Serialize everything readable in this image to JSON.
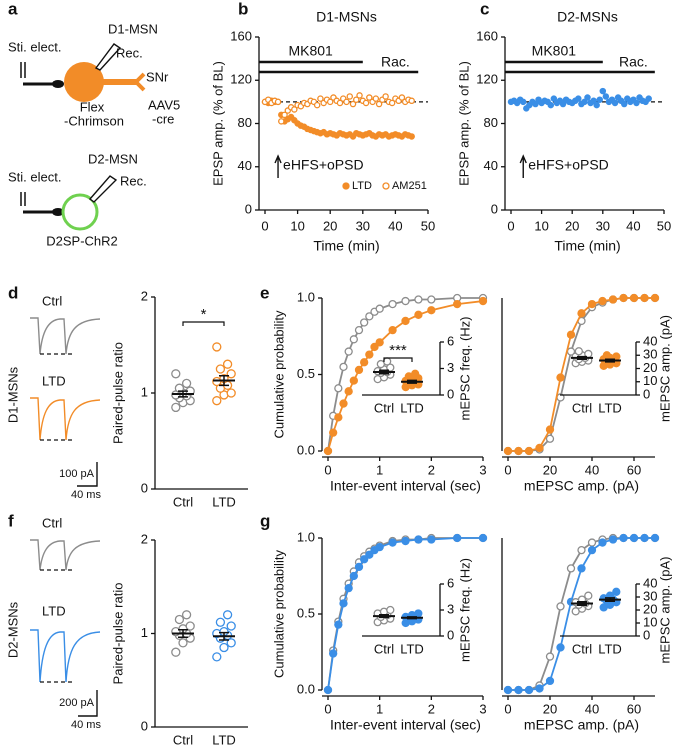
{
  "panel_labels": [
    "a",
    "b",
    "c",
    "d",
    "e",
    "f",
    "g"
  ],
  "diagram": {
    "d1": {
      "stim": "Sti. elect.",
      "cell": "D1-MSN",
      "rec": "Rec.",
      "target": "SNr",
      "opsin": "Flex",
      "opsin2": "-Chrimson",
      "virus": "AAV5",
      "virus2": "-cre"
    },
    "d2": {
      "stim": "Sti. elect.",
      "cell": "D2-MSN",
      "rec": "Rec.",
      "opsin": "D2SP-ChR2"
    }
  },
  "traces": {
    "d": {
      "row": "D1-MSNs",
      "ctrl": "Ctrl",
      "ltd": "LTD",
      "scale_y": "100 pA",
      "scale_x": "40 ms"
    },
    "f": {
      "row": "D2-MSNs",
      "ctrl": "Ctrl",
      "ltd": "LTD",
      "scale_y": "200 pA",
      "scale_x": "40 ms"
    }
  },
  "chart_data": [
    {
      "type": "line",
      "title": "D1-MSNs",
      "x_label": "Time (min)",
      "y_label": "EPSP amp. (% of BL)",
      "x": [
        0,
        1,
        2,
        3,
        4,
        5,
        6,
        7,
        8,
        9,
        10,
        11,
        12,
        13,
        14,
        15,
        16,
        17,
        18,
        19,
        20,
        21,
        22,
        23,
        24,
        25,
        26,
        27,
        28,
        29,
        30,
        31,
        32,
        33,
        34,
        35,
        36,
        37,
        38,
        39,
        40,
        41,
        42,
        43,
        44,
        45
      ],
      "series": [
        {
          "name": "LTD",
          "color": "#f28c28",
          "marker": "filled",
          "values": [
            100,
            99,
            101,
            100,
            100,
            88,
            82,
            84,
            86,
            83,
            80,
            78,
            77,
            75,
            74,
            73,
            72,
            71,
            72,
            70,
            71,
            70,
            69,
            71,
            70,
            69,
            70,
            68,
            71,
            70,
            69,
            70,
            71,
            69,
            68,
            70,
            69,
            70,
            68,
            69,
            70,
            69,
            68,
            70,
            69,
            68
          ]
        },
        {
          "name": "AM251",
          "color": "#f28c28",
          "marker": "open",
          "values": [
            100,
            102,
            99,
            101,
            100,
            82,
            88,
            92,
            95,
            93,
            97,
            96,
            99,
            98,
            101,
            100,
            97,
            103,
            99,
            102,
            100,
            104,
            101,
            99,
            103,
            100,
            105,
            98,
            102,
            106,
            101,
            99,
            104,
            100,
            103,
            98,
            102,
            105,
            100,
            99,
            103,
            101,
            104,
            100,
            102,
            101
          ]
        }
      ],
      "xlim": [
        0,
        50
      ],
      "ylim": [
        0,
        160
      ],
      "xticks": [
        0,
        10,
        20,
        30,
        40,
        50
      ],
      "yticks": [
        0,
        40,
        80,
        120,
        160
      ],
      "baseline": 100,
      "annotations": [
        "MK801",
        "Rac.",
        "eHFS+oPSD"
      ],
      "legend": "bottom-right"
    },
    {
      "type": "line",
      "title": "D2-MSNs",
      "x_label": "Time (min)",
      "y_label": "EPSP amp. (% of BL)",
      "x": [
        0,
        1,
        2,
        3,
        4,
        5,
        6,
        7,
        8,
        9,
        10,
        11,
        12,
        13,
        14,
        15,
        16,
        17,
        18,
        19,
        20,
        21,
        22,
        23,
        24,
        25,
        26,
        27,
        28,
        29,
        30,
        31,
        32,
        33,
        34,
        35,
        36,
        37,
        38,
        39,
        40,
        41,
        42,
        43,
        44,
        45
      ],
      "series": [
        {
          "color": "#3a8ee6",
          "marker": "filled",
          "values": [
            100,
            101,
            99,
            102,
            100,
            94,
            97,
            100,
            98,
            102,
            99,
            101,
            100,
            97,
            103,
            99,
            101,
            98,
            102,
            100,
            99,
            101,
            103,
            98,
            100,
            104,
            99,
            101,
            97,
            102,
            110,
            105,
            100,
            102,
            99,
            104,
            101,
            98,
            103,
            100,
            102,
            99,
            104,
            101,
            100,
            103
          ]
        }
      ],
      "xlim": [
        0,
        50
      ],
      "ylim": [
        0,
        160
      ],
      "xticks": [
        0,
        10,
        20,
        30,
        40,
        50
      ],
      "yticks": [
        0,
        40,
        80,
        120,
        160
      ],
      "baseline": 100,
      "annotations": [
        "MK801",
        "Rac.",
        "eHFS+oPSD"
      ]
    },
    {
      "type": "strip",
      "y_label": "Paired-pulse ratio",
      "categories": [
        "Ctrl",
        "LTD"
      ],
      "series": [
        {
          "color": "#8c8c8c",
          "marker": "open",
          "values": [
            0.85,
            0.9,
            0.92,
            0.95,
            0.97,
            0.98,
            1.0,
            1.02,
            1.05,
            1.1,
            1.2
          ],
          "mean": 0.99,
          "sem": 0.03
        },
        {
          "color": "#f28c28",
          "marker": "open",
          "values": [
            0.92,
            0.98,
            1.0,
            1.05,
            1.08,
            1.12,
            1.15,
            1.2,
            1.25,
            1.3,
            1.48
          ],
          "mean": 1.13,
          "sem": 0.05
        }
      ],
      "ylim": [
        0,
        2
      ],
      "yticks": [
        0,
        1,
        2
      ],
      "significance": "*"
    },
    {
      "type": "line",
      "lines": true,
      "x_label": "Inter-event interval (sec)",
      "y_label": "Cumulative probability",
      "x": [
        0,
        0.1,
        0.2,
        0.3,
        0.4,
        0.5,
        0.6,
        0.7,
        0.8,
        0.9,
        1.0,
        1.25,
        1.5,
        1.75,
        2,
        2.5,
        3
      ],
      "series": [
        {
          "color": "#8c8c8c",
          "marker": "open",
          "values": [
            0,
            0.23,
            0.41,
            0.55,
            0.65,
            0.73,
            0.79,
            0.84,
            0.88,
            0.91,
            0.93,
            0.96,
            0.98,
            0.99,
            0.99,
            1.0,
            1.0
          ]
        },
        {
          "color": "#f28c28",
          "marker": "filled",
          "values": [
            0,
            0.12,
            0.22,
            0.31,
            0.39,
            0.46,
            0.53,
            0.58,
            0.63,
            0.68,
            0.71,
            0.79,
            0.85,
            0.89,
            0.92,
            0.96,
            0.98
          ]
        }
      ],
      "xlim": [
        0,
        3
      ],
      "ylim": [
        0,
        1
      ],
      "xticks": [
        0,
        1,
        2,
        3
      ],
      "yticks": [
        {
          "value": 0,
          "label": "0.0"
        },
        {
          "value": 0.5,
          "label": "0.5"
        },
        {
          "value": 1,
          "label": "1.0"
        }
      ]
    },
    {
      "type": "strip",
      "y_label": "mEPSC freq. (Hz)",
      "categories": [
        "Ctrl",
        "LTD"
      ],
      "axis_side": "right",
      "series": [
        {
          "color": "#8c8c8c",
          "marker": "open",
          "values": [
            1.8,
            2.0,
            2.3,
            2.5,
            2.6,
            2.7,
            2.9,
            3.1,
            3.5,
            3.8
          ],
          "mean": 2.6,
          "sem": 0.2
        },
        {
          "color": "#f28c28",
          "marker": "filled",
          "values": [
            0.9,
            1.1,
            1.2,
            1.3,
            1.5,
            1.6,
            1.7,
            1.9,
            2.1,
            2.4
          ],
          "mean": 1.5,
          "sem": 0.15
        }
      ],
      "ylim": [
        0,
        6
      ],
      "yticks": [
        0,
        3,
        6
      ],
      "significance": "***"
    },
    {
      "type": "line",
      "lines": true,
      "x_label": "mEPSC amp. (pA)",
      "x": [
        0,
        5,
        10,
        15,
        20,
        25,
        30,
        35,
        40,
        45,
        50,
        55,
        60,
        65,
        70
      ],
      "series": [
        {
          "color": "#8c8c8c",
          "marker": "open",
          "values": [
            0,
            0,
            0,
            0.01,
            0.08,
            0.35,
            0.65,
            0.85,
            0.94,
            0.97,
            0.99,
            1,
            1,
            1,
            1
          ]
        },
        {
          "color": "#f28c28",
          "marker": "filled",
          "values": [
            0,
            0,
            0,
            0.02,
            0.14,
            0.48,
            0.76,
            0.9,
            0.96,
            0.98,
            0.99,
            1,
            1,
            1,
            1
          ]
        }
      ],
      "xlim": [
        0,
        70
      ],
      "ylim": [
        0,
        1
      ],
      "xticks": [
        0,
        20,
        40,
        60
      ]
    },
    {
      "type": "strip",
      "y_label": "mEPSC amp. (pA)",
      "categories": [
        "Ctrl",
        "LTD"
      ],
      "axis_side": "right",
      "series": [
        {
          "color": "#8c8c8c",
          "marker": "open",
          "values": [
            24,
            25,
            26,
            27,
            28,
            29,
            30,
            31,
            33
          ],
          "mean": 28,
          "sem": 1
        },
        {
          "color": "#f28c28",
          "marker": "filled",
          "values": [
            22,
            23,
            24,
            25,
            26,
            27,
            28,
            29,
            30
          ],
          "mean": 26,
          "sem": 1
        }
      ],
      "ylim": [
        0,
        40
      ],
      "yticks": [
        0,
        10,
        20,
        30,
        40
      ]
    },
    {
      "type": "strip",
      "y_label": "Paired-pulse ratio",
      "categories": [
        "Ctrl",
        "LTD"
      ],
      "series": [
        {
          "color": "#8c8c8c",
          "marker": "open",
          "values": [
            0.8,
            0.9,
            0.95,
            0.98,
            1.0,
            1.02,
            1.05,
            1.08,
            1.15,
            1.2
          ],
          "mean": 1.0,
          "sem": 0.04
        },
        {
          "color": "#3a8ee6",
          "marker": "open",
          "values": [
            0.75,
            0.85,
            0.9,
            0.95,
            0.98,
            1.0,
            1.02,
            1.08,
            1.12,
            1.2
          ],
          "mean": 0.97,
          "sem": 0.04
        }
      ],
      "ylim": [
        0,
        2
      ],
      "yticks": [
        0,
        1,
        2
      ]
    },
    {
      "type": "line",
      "lines": true,
      "x_label": "Inter-event interval (sec)",
      "y_label": "Cumulative probability",
      "x": [
        0,
        0.1,
        0.2,
        0.3,
        0.4,
        0.5,
        0.6,
        0.7,
        0.8,
        0.9,
        1.0,
        1.25,
        1.5,
        1.75,
        2,
        2.5,
        3
      ],
      "series": [
        {
          "color": "#8c8c8c",
          "marker": "open",
          "values": [
            0,
            0.26,
            0.45,
            0.6,
            0.7,
            0.78,
            0.84,
            0.88,
            0.91,
            0.93,
            0.95,
            0.98,
            0.99,
            0.99,
            1.0,
            1.0,
            1.0
          ]
        },
        {
          "color": "#3a8ee6",
          "marker": "filled",
          "values": [
            0,
            0.24,
            0.43,
            0.57,
            0.67,
            0.75,
            0.81,
            0.86,
            0.89,
            0.92,
            0.94,
            0.97,
            0.98,
            0.99,
            0.99,
            1.0,
            1.0
          ]
        }
      ],
      "xlim": [
        0,
        3
      ],
      "ylim": [
        0,
        1
      ],
      "xticks": [
        0,
        1,
        2,
        3
      ],
      "yticks": [
        {
          "value": 0,
          "label": "0.0"
        },
        {
          "value": 0.5,
          "label": "0.5"
        },
        {
          "value": 1,
          "label": "1.0"
        }
      ]
    },
    {
      "type": "strip",
      "y_label": "mEPSC freq. (Hz)",
      "categories": [
        "Ctrl",
        "LTD"
      ],
      "axis_side": "right",
      "series": [
        {
          "color": "#8c8c8c",
          "marker": "open",
          "values": [
            1.6,
            1.8,
            2.0,
            2.2,
            2.4,
            2.6,
            2.8,
            3.0
          ],
          "mean": 2.3,
          "sem": 0.15
        },
        {
          "color": "#3a8ee6",
          "marker": "filled",
          "values": [
            1.5,
            1.7,
            1.9,
            2.0,
            2.1,
            2.2,
            2.4,
            2.6
          ],
          "mean": 2.1,
          "sem": 0.1
        }
      ],
      "ylim": [
        0,
        6
      ],
      "yticks": [
        0,
        3,
        6
      ]
    },
    {
      "type": "line",
      "lines": true,
      "x_label": "mEPSC amp. (pA)",
      "x": [
        0,
        5,
        10,
        15,
        20,
        25,
        30,
        35,
        40,
        45,
        50,
        55,
        60,
        65,
        70
      ],
      "series": [
        {
          "color": "#8c8c8c",
          "marker": "open",
          "values": [
            0,
            0,
            0,
            0.03,
            0.22,
            0.55,
            0.8,
            0.92,
            0.97,
            0.99,
            1,
            1,
            1,
            1,
            1
          ]
        },
        {
          "color": "#3a8ee6",
          "marker": "filled",
          "values": [
            0,
            0,
            0,
            0.01,
            0.06,
            0.28,
            0.58,
            0.8,
            0.92,
            0.97,
            0.99,
            1,
            1,
            1,
            1
          ]
        }
      ],
      "xlim": [
        0,
        70
      ],
      "ylim": [
        0,
        1
      ],
      "xticks": [
        0,
        20,
        40,
        60
      ]
    },
    {
      "type": "strip",
      "y_label": "mEPSC amp. (pA)",
      "categories": [
        "Ctrl",
        "LTD"
      ],
      "axis_side": "right",
      "series": [
        {
          "color": "#8c8c8c",
          "marker": "open",
          "values": [
            19,
            21,
            23,
            24,
            25,
            26,
            28,
            31
          ],
          "mean": 25,
          "sem": 1.3
        },
        {
          "color": "#3a8ee6",
          "marker": "filled",
          "values": [
            22,
            24,
            26,
            27,
            28,
            29,
            31,
            34
          ],
          "mean": 28,
          "sem": 1.3
        }
      ],
      "ylim": [
        0,
        40
      ],
      "yticks": [
        0,
        10,
        20,
        30,
        40
      ]
    }
  ]
}
